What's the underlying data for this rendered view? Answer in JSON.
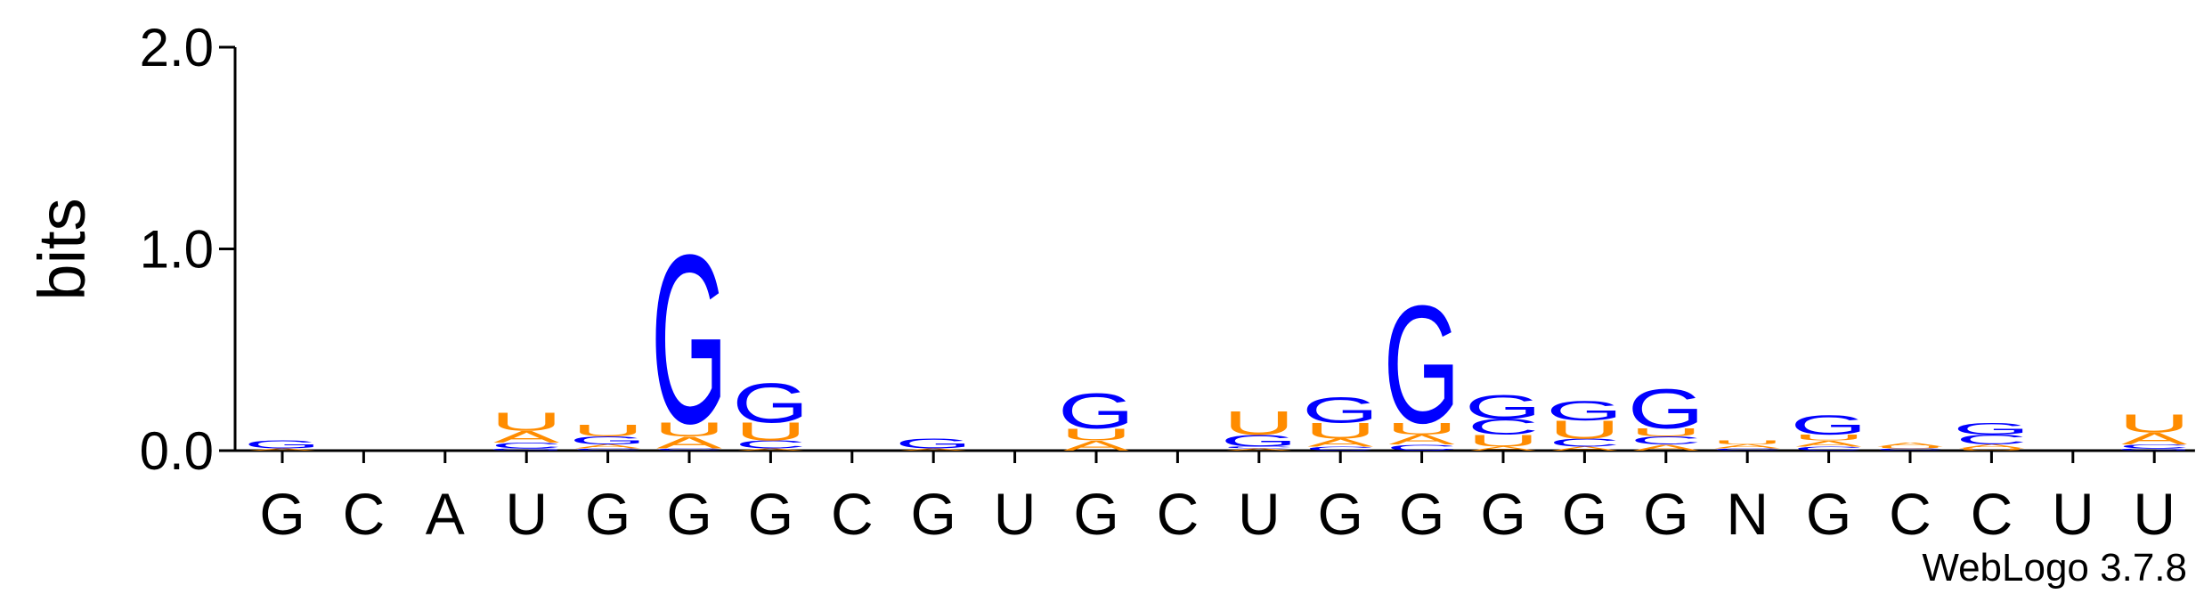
{
  "chart_data": {
    "type": "logo",
    "ylabel": "bits",
    "footer": "WebLogo 3.7.8",
    "categories": [
      "G",
      "C",
      "A",
      "U",
      "G",
      "G",
      "G",
      "C",
      "G",
      "U",
      "G",
      "C",
      "U",
      "G",
      "G",
      "G",
      "G",
      "G",
      "N",
      "G",
      "C",
      "C",
      "U",
      "U"
    ],
    "ylim": [
      0,
      2
    ],
    "yticks": [
      {
        "value": 0,
        "label": "0.0"
      },
      {
        "value": 1,
        "label": "1.0"
      },
      {
        "value": 2,
        "label": "2.0"
      }
    ],
    "series": [
      {
        "name": "A",
        "color": "#ff8c00",
        "values": [
          0.01,
          0,
          0,
          0.06,
          0.02,
          0.06,
          0.01,
          0,
          0.01,
          0,
          0.05,
          0,
          0.01,
          0.04,
          0.05,
          0.02,
          0.02,
          0.03,
          0.02,
          0.03,
          0.02,
          0.02,
          0,
          0.06
        ]
      },
      {
        "name": "C",
        "color": "#0000ff",
        "values": [
          0,
          0,
          0,
          0.03,
          0.01,
          0.01,
          0.04,
          0,
          0,
          0,
          0,
          0,
          0.01,
          0.02,
          0.03,
          0.08,
          0.04,
          0.04,
          0.01,
          0.02,
          0.01,
          0.05,
          0,
          0.02
        ]
      },
      {
        "name": "G",
        "color": "#0000ff",
        "values": [
          0.04,
          0,
          0,
          0.01,
          0.04,
          0.86,
          0.2,
          0,
          0.05,
          0,
          0.18,
          0,
          0.06,
          0.13,
          0.6,
          0.12,
          0.1,
          0.2,
          0,
          0.1,
          0,
          0.06,
          0,
          0.01
        ]
      },
      {
        "name": "U",
        "color": "#ff8c00",
        "values": [
          0,
          0,
          0,
          0.09,
          0.06,
          0.07,
          0.09,
          0,
          0,
          0,
          0.06,
          0,
          0.12,
          0.08,
          0.06,
          0.06,
          0.09,
          0.04,
          0.02,
          0.03,
          0.01,
          0.01,
          0,
          0.09
        ]
      }
    ]
  }
}
